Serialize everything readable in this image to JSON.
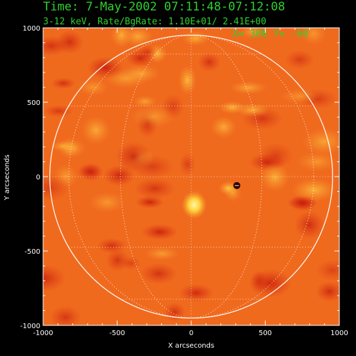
{
  "header": {
    "time_line": "Time:  7-May-2002 07:11:48-07:12:08",
    "energy_line": "3-12 keV, Rate/BgRate:  1.10E+01/  2.41E+00",
    "cursor_readout": "X=  308 Y=  -60"
  },
  "colors": {
    "label_green": "#2ed12e",
    "axis_white": "#ffffff",
    "background": "#000000",
    "image_base": "#f06a1e"
  },
  "chart_data": {
    "type": "heatmap",
    "title": "",
    "xlabel": "X arcseconds",
    "ylabel": "Y arcseconds",
    "xlim": [
      -1000,
      1000
    ],
    "ylim": [
      -1000,
      1000
    ],
    "x_ticks": [
      -1000,
      -500,
      0,
      500,
      1000
    ],
    "y_ticks": [
      -1000,
      -500,
      0,
      500,
      1000
    ],
    "x_tick_labels": [
      "-1000",
      "-500",
      "0",
      "500",
      "1000"
    ],
    "y_tick_labels": [
      "-1000",
      "-500",
      "0",
      "500",
      "1000"
    ],
    "solar_limb_radius": 955,
    "grid": true,
    "sources": [
      {
        "x": 308,
        "y": -60,
        "kind": "peak"
      },
      {
        "x": 20,
        "y": -190,
        "kind": "bright"
      }
    ]
  }
}
